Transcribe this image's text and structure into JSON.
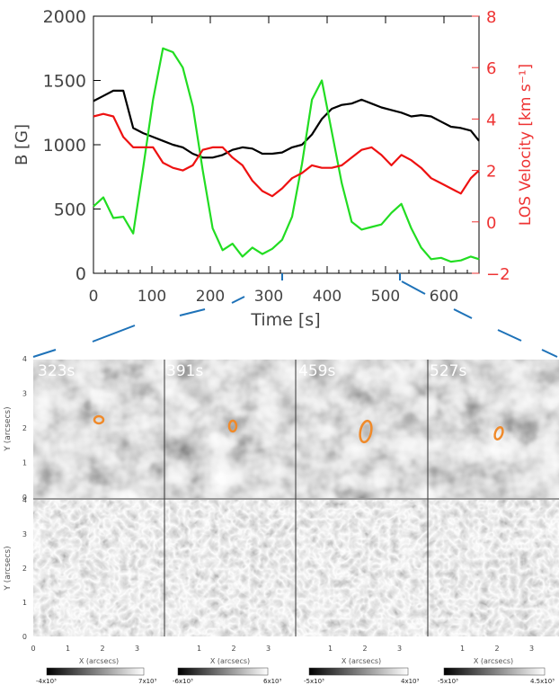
{
  "chart_data": [
    {
      "type": "line",
      "xlabel": "Time [s]",
      "ylabel": "B [G]",
      "y2label": "LOS Velocity [km s⁻¹]",
      "xlim": [
        0,
        660
      ],
      "ylim": [
        0,
        2000
      ],
      "y2lim": [
        -2,
        8
      ],
      "xticks": [
        "0",
        "100",
        "200",
        "300",
        "400",
        "500",
        "600"
      ],
      "yticks": [
        "0",
        "500",
        "1000",
        "1500",
        "2000"
      ],
      "y2ticks": [
        "−2",
        "0",
        "2",
        "4",
        "6",
        "8"
      ],
      "colors": {
        "black_series": "#000000",
        "green_series": "#22dd22",
        "red_series": "#ee1111",
        "axis2": "#ee3333",
        "zoom_lines": "#1e72b8"
      },
      "series": [
        {
          "axis": "left",
          "color": "#000000",
          "x": [
            0,
            17,
            34,
            51,
            68,
            85,
            102,
            119,
            136,
            153,
            170,
            187,
            204,
            221,
            238,
            255,
            272,
            289,
            306,
            323,
            340,
            357,
            374,
            391,
            408,
            425,
            442,
            459,
            476,
            493,
            510,
            527,
            544,
            561,
            578,
            595,
            612,
            629,
            646,
            660
          ],
          "values": [
            1340,
            1380,
            1420,
            1420,
            1130,
            1090,
            1060,
            1030,
            1000,
            980,
            930,
            900,
            900,
            920,
            960,
            980,
            970,
            930,
            930,
            940,
            980,
            1000,
            1080,
            1200,
            1280,
            1310,
            1320,
            1350,
            1320,
            1290,
            1270,
            1250,
            1220,
            1230,
            1220,
            1180,
            1140,
            1130,
            1110,
            1030
          ]
        },
        {
          "axis": "left",
          "color": "#22dd22",
          "x": [
            0,
            17,
            34,
            51,
            68,
            85,
            102,
            119,
            136,
            153,
            170,
            187,
            204,
            221,
            238,
            255,
            272,
            289,
            306,
            323,
            340,
            357,
            374,
            391,
            408,
            425,
            442,
            459,
            476,
            493,
            510,
            527,
            544,
            561,
            578,
            595,
            612,
            629,
            646,
            660
          ],
          "values": [
            520,
            590,
            430,
            440,
            310,
            820,
            1350,
            1750,
            1720,
            1600,
            1300,
            800,
            350,
            180,
            230,
            130,
            200,
            150,
            190,
            260,
            440,
            850,
            1350,
            1500,
            1100,
            700,
            400,
            340,
            360,
            380,
            470,
            540,
            350,
            200,
            110,
            120,
            90,
            100,
            130,
            110
          ]
        },
        {
          "axis": "right",
          "color": "#ee1111",
          "x": [
            0,
            17,
            34,
            51,
            68,
            85,
            102,
            119,
            136,
            153,
            170,
            187,
            204,
            221,
            238,
            255,
            272,
            289,
            306,
            323,
            340,
            357,
            374,
            391,
            408,
            425,
            442,
            459,
            476,
            493,
            510,
            527,
            544,
            561,
            578,
            595,
            612,
            629,
            646,
            660
          ],
          "values": [
            4.1,
            4.2,
            4.1,
            3.3,
            2.9,
            2.9,
            2.9,
            2.3,
            2.1,
            2.0,
            2.2,
            2.8,
            2.9,
            2.9,
            2.5,
            2.2,
            1.6,
            1.2,
            1.0,
            1.3,
            1.7,
            1.9,
            2.2,
            2.1,
            2.1,
            2.2,
            2.5,
            2.8,
            2.9,
            2.6,
            2.2,
            2.6,
            2.4,
            2.1,
            1.7,
            1.5,
            1.3,
            1.1,
            1.7,
            2.0
          ]
        }
      ]
    },
    {
      "type": "heatmap",
      "panels": [
        {
          "label": "323s",
          "colorbar_min": "-4x10³",
          "colorbar_max": "7x10³"
        },
        {
          "label": "391s",
          "colorbar_min": "-6x10³",
          "colorbar_max": "6x10³"
        },
        {
          "label": "459s",
          "colorbar_min": "-5x10³",
          "colorbar_max": "4x10³"
        },
        {
          "label": "527s",
          "colorbar_min": "-5x10³",
          "colorbar_max": "4.5x10³"
        }
      ],
      "ylabel": "Y (arcsecs)",
      "xlabel": "X (arcsecs)",
      "yticks": [
        "0",
        "1",
        "2",
        "3",
        "4"
      ],
      "xticks_first": [
        "0",
        "1",
        "2",
        "3"
      ],
      "xticks_other": [
        "1",
        "2",
        "3"
      ]
    }
  ]
}
